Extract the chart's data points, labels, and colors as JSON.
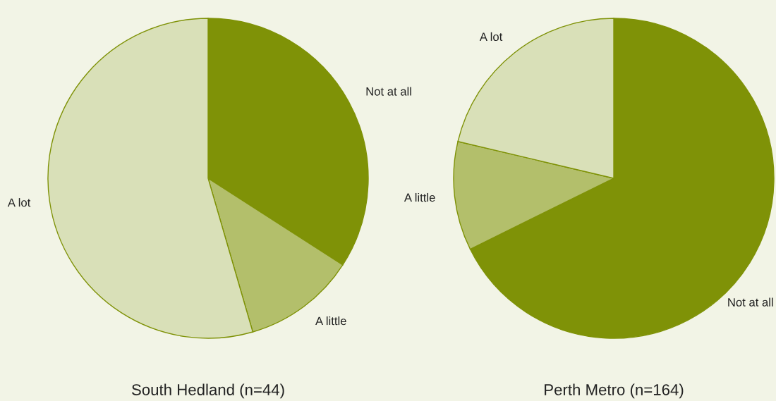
{
  "chart_data": [
    {
      "type": "pie",
      "title": "South Hedland (n=44)",
      "categories": [
        "Not at all",
        "A little",
        "A lot"
      ],
      "values": [
        34.1,
        11.4,
        54.5
      ],
      "colors": [
        "#7f9207",
        "#b3bf6b",
        "#d9e0b8"
      ]
    },
    {
      "type": "pie",
      "title": "Perth Metro (n=164)",
      "categories": [
        "Not at all",
        "A little",
        "A lot"
      ],
      "values": [
        67.7,
        11.0,
        21.3
      ],
      "colors": [
        "#7f9207",
        "#b3bf6b",
        "#d9e0b8"
      ]
    }
  ]
}
